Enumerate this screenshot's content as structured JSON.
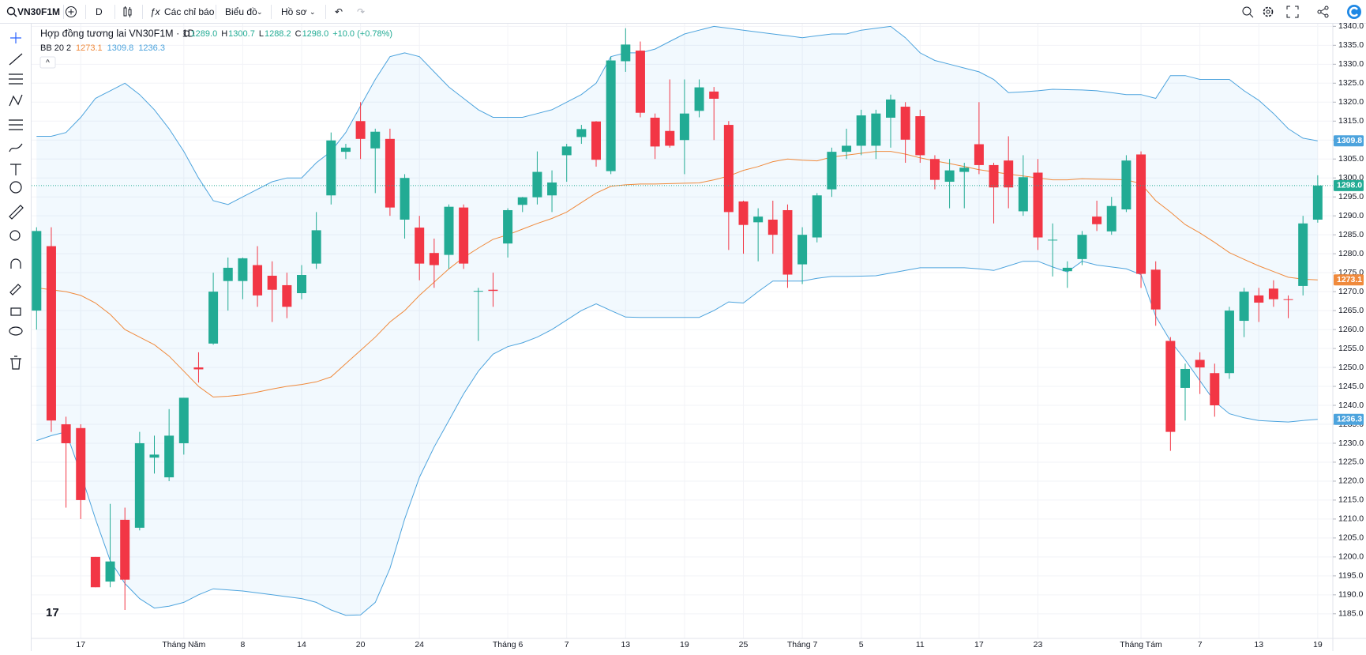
{
  "toolbar": {
    "symbol": "VN30F1M",
    "interval": "D",
    "indicators": "Các chỉ báo",
    "chart": "Biểu đồ",
    "profile": "Hồ sơ"
  },
  "legend": {
    "title": "Hợp đồng tương lai VN30F1M · 1D",
    "ohlc": [
      {
        "key": "O",
        "value": "1289.0"
      },
      {
        "key": "H",
        "value": "1300.7"
      },
      {
        "key": "L",
        "value": "1288.2"
      },
      {
        "key": "C",
        "value": "1298.0"
      }
    ],
    "change": "+10.0 (+0.78%)",
    "indicator": "BB 20 2"
  },
  "chart_data": {
    "type": "candlestick",
    "title": "Hợp đồng tương lai VN30F1M · 1D",
    "categories": [
      null,
      null,
      null,
      "17",
      null,
      null,
      null,
      null,
      null,
      null,
      "Tháng Năm",
      null,
      null,
      null,
      "8",
      null,
      null,
      null,
      "14",
      null,
      null,
      null,
      "20",
      null,
      null,
      null,
      "24",
      null,
      null,
      null,
      null,
      null,
      "Tháng 6",
      null,
      null,
      null,
      "7",
      null,
      null,
      null,
      "13",
      null,
      null,
      null,
      "19",
      null,
      null,
      null,
      "25",
      null,
      null,
      null,
      "Tháng 7",
      null,
      null,
      null,
      "5",
      null,
      null,
      null,
      "11",
      null,
      null,
      null,
      "17",
      null,
      null,
      null,
      "23",
      null,
      null,
      null,
      null,
      null,
      null,
      "Tháng Tám",
      null,
      null,
      null,
      "7",
      null,
      null,
      null,
      "13",
      null,
      null,
      null,
      "19"
    ],
    "up_color": "#22ab94",
    "down_color": "#f23645",
    "open": [
      1265,
      1282,
      1235,
      1234,
      1200,
      1193.5,
      1209.8,
      1207.7,
      1226.2,
      1221,
      1230,
      1250,
      1256.3,
      1272.8,
      1272.8,
      1277,
      1274.2,
      1271.7,
      1269.6,
      1277.4,
      1295.4,
      1306.9,
      1315,
      1307.8,
      1310.3,
      1289,
      1286.9,
      1280.2,
      1279.7,
      1292.2,
      1270,
      1270.5,
      1282.7,
      1292.9,
      1294.9,
      1295.4,
      1306,
      1310.8,
      1314.9,
      1301.8,
      1330.8,
      1333.6,
      1315.9,
      1312.4,
      1310,
      1317.7,
      1322.8,
      1314,
      1293.8,
      1288.3,
      1289,
      1291.5,
      1277.2,
      1284.3,
      1297,
      1306.9,
      1308.5,
      1308.5,
      1315.9,
      1318.8,
      1316.3,
      1305,
      1299,
      1301.6,
      1308.9,
      1303.4,
      1304.6,
      1291.2,
      1301.4,
      1283.7,
      1275.4,
      1278.6,
      1289.8,
      1285.9,
      1291.7,
      1306.2,
      1275.8,
      1257,
      1244.6,
      1252,
      1248.5,
      1248.5,
      1262.3,
      1269,
      1270.8,
      1268,
      1271.5,
      1289
    ],
    "high": [
      1287,
      1287,
      1237,
      1235,
      1200,
      1214,
      1213,
      1233,
      1232,
      1239,
      1242,
      1254,
      1275,
      1279,
      1279,
      1282,
      1278,
      1275,
      1277,
      1291,
      1312,
      1309,
      1320,
      1313,
      1313,
      1301,
      1290,
      1284,
      1293,
      1293,
      1271,
      1275,
      1292,
      1295,
      1307,
      1302,
      1309,
      1314,
      1315,
      1332,
      1339.5,
      1336,
      1317,
      1326,
      1326,
      1326,
      1324,
      1315,
      1294,
      1292,
      1294,
      1293,
      1287,
      1296,
      1308,
      1313,
      1318,
      1318,
      1322,
      1320,
      1318,
      1306,
      1305,
      1304,
      1320,
      1304,
      1311,
      1306,
      1305,
      1288,
      1278,
      1286,
      1294,
      1295,
      1306,
      1307,
      1278,
      1258,
      1251,
      1254,
      1251,
      1266,
      1271,
      1271,
      1273,
      1269,
      1290,
      1300.7
    ],
    "low": [
      1260,
      1233,
      1213,
      1210,
      1192,
      1192,
      1186,
      1207,
      1222,
      1220,
      1227,
      1246,
      1256,
      1265,
      1268,
      1266,
      1262,
      1263,
      1268,
      1276,
      1293,
      1305,
      1305,
      1296,
      1290,
      1284,
      1273,
      1271,
      1276,
      1276,
      1257,
      1266,
      1279,
      1291,
      1293,
      1291,
      1299,
      1309,
      1303,
      1301,
      1328,
      1316,
      1305,
      1308,
      1301,
      1316,
      1310,
      1281,
      1280,
      1278,
      1280,
      1271,
      1272,
      1283,
      1295,
      1305,
      1306,
      1305,
      1308,
      1304,
      1304,
      1297,
      1292,
      1292,
      1301,
      1288,
      1292,
      1290,
      1281,
      1274,
      1271,
      1277,
      1286,
      1285,
      1291,
      1271,
      1261,
      1228,
      1236,
      1243,
      1237,
      1247,
      1258,
      1262,
      1266,
      1263,
      1269,
      1288.2
    ],
    "close": [
      1286,
      1236,
      1230,
      1215,
      1192,
      1198.8,
      1194,
      1230,
      1227,
      1232,
      1242,
      1249.5,
      1270,
      1276.3,
      1278.8,
      1269,
      1270.5,
      1266,
      1274.4,
      1286.2,
      1309.9,
      1308,
      1310.3,
      1312.2,
      1292.2,
      1300,
      1277.4,
      1277,
      1292.4,
      1277.4,
      1270.2,
      1270.2,
      1291.5,
      1294.9,
      1301.6,
      1298.8,
      1308.3,
      1312.9,
      1304.8,
      1331,
      1335.2,
      1317.2,
      1308.3,
      1308.5,
      1317,
      1323.9,
      1320.9,
      1291,
      1287.6,
      1289.8,
      1285,
      1274.5,
      1285,
      1295.4,
      1306.9,
      1308.5,
      1316.5,
      1317,
      1320.7,
      1310.1,
      1306,
      1299.5,
      1302,
      1302.7,
      1303.4,
      1297.5,
      1297.5,
      1300.2,
      1284.3,
      1283.7,
      1276.3,
      1285,
      1287.8,
      1292.6,
      1304.6,
      1274.7,
      1265.3,
      1233,
      1249.6,
      1250,
      1240,
      1265,
      1270,
      1267.1,
      1268,
      1267.8,
      1288,
      1298
    ],
    "last_close_label": "1298.0",
    "series": [
      {
        "color": "#4ca3dd",
        "values": [
          1311,
          1311,
          1312,
          1316,
          1321,
          1323,
          1325,
          1322,
          1318,
          1313,
          1307,
          1300,
          1294,
          1293,
          1295,
          1297,
          1299,
          1300,
          1300,
          1304,
          1307,
          1312,
          1319,
          1326,
          1332,
          1333,
          1332,
          1328,
          1324,
          1321,
          1318,
          1316,
          1316,
          1316,
          1317,
          1318,
          1320,
          1322,
          1325,
          1332,
          1333,
          1333,
          1334,
          1336,
          1338,
          1339,
          1340,
          1339.5,
          1339,
          1338.5,
          1338,
          1337.5,
          1337,
          1337.5,
          1338,
          1338,
          1339,
          1339.5,
          1340,
          1337,
          1333,
          1331,
          1330,
          1329,
          1328,
          1326,
          1322.5,
          1322.7,
          1323,
          1323.4,
          1323.3,
          1323.2,
          1323,
          1322.5,
          1322,
          1322,
          1321,
          1327,
          1327,
          1326,
          1326,
          1326,
          1323,
          1320.5,
          1317,
          1313,
          1310.5,
          1309.8
        ]
      },
      {
        "color": "#f08a3c",
        "values": [
          1271,
          1270.5,
          1270,
          1269,
          1267,
          1264,
          1260,
          1258,
          1256,
          1253,
          1249,
          1245,
          1242.2,
          1242.4,
          1242.8,
          1243.5,
          1244.3,
          1245,
          1245.5,
          1246.2,
          1247.5,
          1251,
          1254.5,
          1258,
          1262,
          1265,
          1269,
          1272.5,
          1276,
          1279,
          1281.5,
          1283.8,
          1285,
          1286.5,
          1288,
          1289.3,
          1291,
          1293.5,
          1296,
          1297.8,
          1298.2,
          1298.4,
          1298.4,
          1298.5,
          1298.6,
          1298.7,
          1299.5,
          1300.5,
          1302,
          1303,
          1304.3,
          1305,
          1304.7,
          1304.5,
          1305.5,
          1306,
          1306.5,
          1307,
          1307,
          1306.3,
          1305.3,
          1304.5,
          1303.8,
          1303,
          1302.2,
          1301.6,
          1301,
          1300.5,
          1300,
          1299.5,
          1299.5,
          1299.8,
          1299.7,
          1299.6,
          1299.5,
          1298.5,
          1294,
          1291,
          1287.7,
          1285.5,
          1283,
          1280.3,
          1278.5,
          1276.8,
          1275.3,
          1273.8,
          1273.3,
          1273.1
        ]
      },
      {
        "color": "#4ca3dd",
        "values": [
          1230.7,
          1232,
          1233,
          1222,
          1210,
          1199,
          1193,
          1189,
          1186.5,
          1187,
          1188,
          1190,
          1191.6,
          1191.3,
          1191,
          1190.5,
          1190,
          1189.5,
          1189,
          1188,
          1186,
          1184.6,
          1184.7,
          1188,
          1197,
          1210,
          1221,
          1229,
          1236,
          1243,
          1249,
          1253.5,
          1255.5,
          1256.5,
          1258,
          1260,
          1262.5,
          1265,
          1266.8,
          1265,
          1263.3,
          1263.2,
          1263.2,
          1263.2,
          1263.2,
          1263.2,
          1265,
          1267.3,
          1267,
          1270,
          1272.8,
          1272.8,
          1272.8,
          1273.5,
          1274,
          1274,
          1274.1,
          1274.2,
          1274.9,
          1275.6,
          1276.3,
          1276.3,
          1276.3,
          1276.3,
          1276,
          1275.6,
          1276.8,
          1278,
          1278,
          1276.5,
          1275.2,
          1278,
          1277,
          1276.5,
          1276,
          1274.5,
          1263.5,
          1257,
          1252,
          1246.5,
          1241,
          1237.8,
          1236.7,
          1236,
          1235.8,
          1235.6,
          1236,
          1236.3
        ]
      }
    ],
    "band_fill": "rgba(33,150,243,0.06)",
    "ylim": [
      1178.5,
      1340.7
    ],
    "yticks": [
      {
        "value": 1185,
        "label": "1185.0"
      },
      {
        "value": 1190,
        "label": "1190.0"
      },
      {
        "value": 1195,
        "label": "1195.0"
      },
      {
        "value": 1200,
        "label": "1200.0"
      },
      {
        "value": 1205,
        "label": "1205.0"
      },
      {
        "value": 1210,
        "label": "1210.0"
      },
      {
        "value": 1215,
        "label": "1215.0"
      },
      {
        "value": 1220,
        "label": "1220.0"
      },
      {
        "value": 1225,
        "label": "1225.0"
      },
      {
        "value": 1230,
        "label": "1230.0"
      },
      {
        "value": 1235,
        "label": "1235.0"
      },
      {
        "value": 1240,
        "label": "1240.0"
      },
      {
        "value": 1245,
        "label": "1245.0"
      },
      {
        "value": 1250,
        "label": "1250.0"
      },
      {
        "value": 1255,
        "label": "1255.0"
      },
      {
        "value": 1260,
        "label": "1260.0"
      },
      {
        "value": 1265,
        "label": "1265.0"
      },
      {
        "value": 1270,
        "label": "1270.0"
      },
      {
        "value": 1275,
        "label": "1275.0"
      },
      {
        "value": 1280,
        "label": "1280.0"
      },
      {
        "value": 1285,
        "label": "1285.0"
      },
      {
        "value": 1290,
        "label": "1290.0"
      },
      {
        "value": 1295,
        "label": "1295.0"
      },
      {
        "value": 1300,
        "label": "1300.0"
      },
      {
        "value": 1305,
        "label": "1305.0"
      },
      {
        "value": 1310,
        "label": "1310.0"
      },
      {
        "value": 1315,
        "label": "1315.0"
      },
      {
        "value": 1320,
        "label": "1320.0"
      },
      {
        "value": 1325,
        "label": "1325.0"
      },
      {
        "value": 1330,
        "label": "1330.0"
      },
      {
        "value": 1335,
        "label": "1335.0"
      },
      {
        "value": 1340,
        "label": "1340.0"
      }
    ],
    "grid": true
  }
}
